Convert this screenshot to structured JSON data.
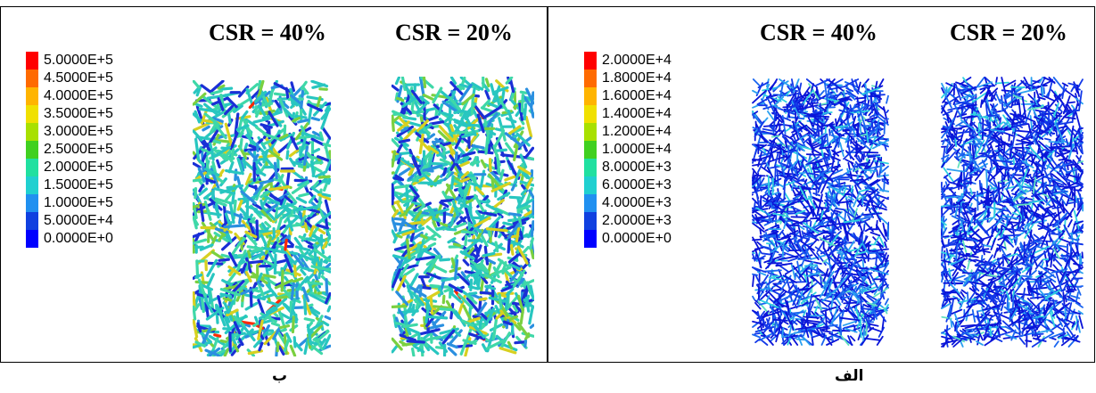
{
  "panels": {
    "right": {
      "title_left": "CSR = 40%",
      "title_right": "CSR = 20%",
      "legend": [
        "2.0000E+4",
        "1.8000E+4",
        "1.6000E+4",
        "1.4000E+4",
        "1.2000E+4",
        "1.0000E+4",
        "8.0000E+3",
        "6.0000E+3",
        "4.0000E+3",
        "2.0000E+3",
        "0.0000E+0"
      ],
      "caption": "الف"
    },
    "left": {
      "title_left": "CSR = 40%",
      "title_right": "CSR = 20%",
      "legend": [
        "5.0000E+5",
        "4.5000E+5",
        "4.0000E+5",
        "3.5000E+5",
        "3.0000E+5",
        "2.5000E+5",
        "2.0000E+5",
        "1.5000E+5",
        "1.0000E+5",
        "5.0000E+4",
        "0.0000E+0"
      ],
      "caption": "ب"
    }
  },
  "colors": {
    "scale": [
      "#ff0000",
      "#ff6a00",
      "#ffb400",
      "#f0e000",
      "#a8e000",
      "#40d020",
      "#20e0a0",
      "#20d0d0",
      "#2090f0",
      "#1040e0",
      "#0000ff"
    ]
  }
}
